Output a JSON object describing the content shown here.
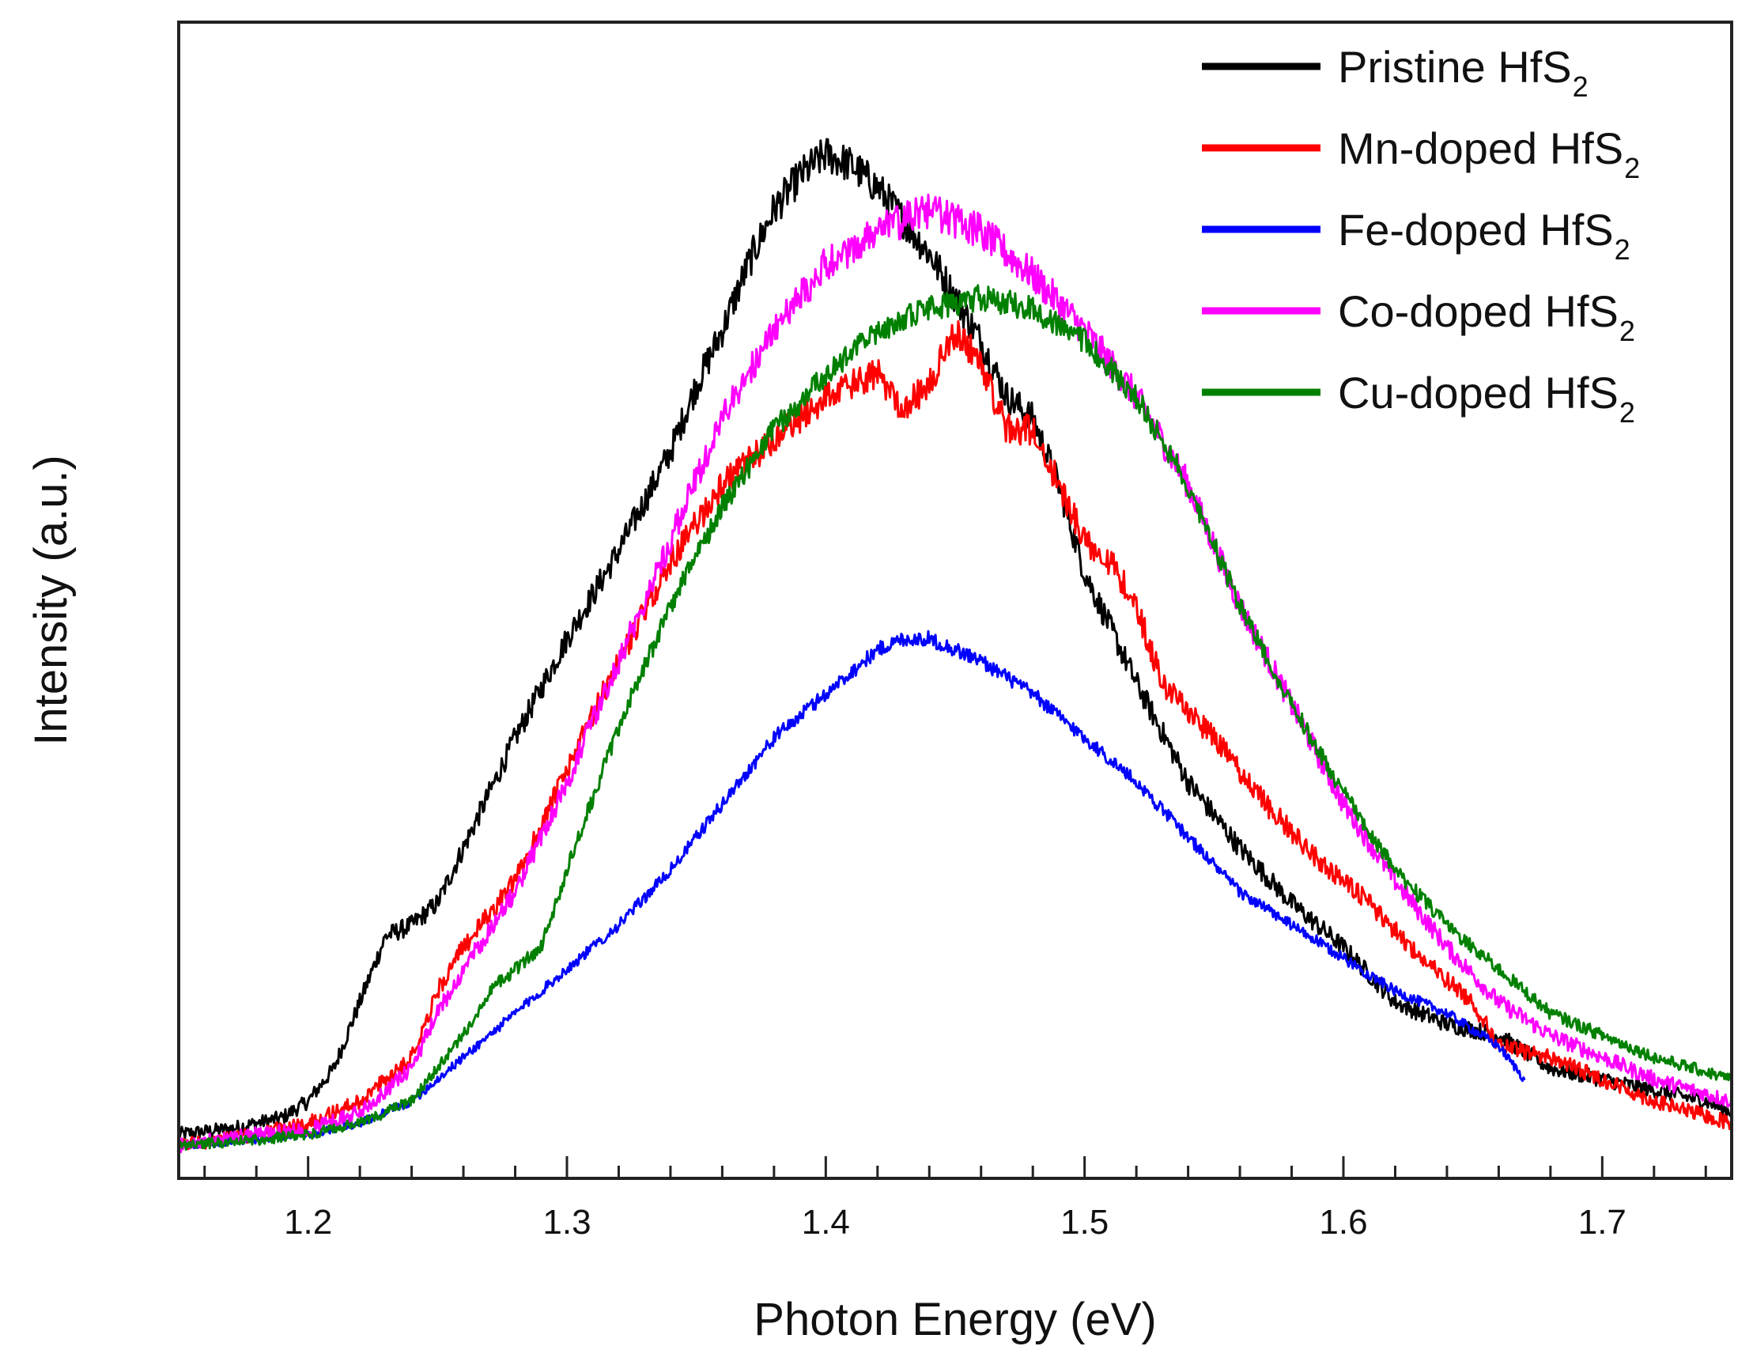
{
  "chart_data": {
    "type": "line",
    "title": "",
    "xlabel": "Photon Energy (eV)",
    "ylabel": "Intensity (a.u.)",
    "xlim": [
      1.15,
      1.75
    ],
    "ylim": [
      0,
      1.05
    ],
    "xticks": [
      1.2,
      1.3,
      1.4,
      1.5,
      1.6,
      1.7
    ],
    "xtick_labels": [
      "1.2",
      "1.3",
      "1.4",
      "1.5",
      "1.6",
      "1.7"
    ],
    "grid": false,
    "legend_position": "top-right",
    "series": [
      {
        "name": "Pristine HfS",
        "subscript": "2",
        "color": "#000000",
        "noise": 0.012,
        "points": [
          [
            1.15,
            0.04
          ],
          [
            1.17,
            0.045
          ],
          [
            1.19,
            0.055
          ],
          [
            1.2,
            0.07
          ],
          [
            1.21,
            0.1
          ],
          [
            1.22,
            0.16
          ],
          [
            1.23,
            0.22
          ],
          [
            1.24,
            0.23
          ],
          [
            1.25,
            0.25
          ],
          [
            1.26,
            0.3
          ],
          [
            1.28,
            0.4
          ],
          [
            1.3,
            0.49
          ],
          [
            1.32,
            0.57
          ],
          [
            1.34,
            0.66
          ],
          [
            1.35,
            0.72
          ],
          [
            1.36,
            0.77
          ],
          [
            1.37,
            0.83
          ],
          [
            1.38,
            0.88
          ],
          [
            1.39,
            0.91
          ],
          [
            1.4,
            0.93
          ],
          [
            1.41,
            0.92
          ],
          [
            1.42,
            0.9
          ],
          [
            1.43,
            0.87
          ],
          [
            1.44,
            0.84
          ],
          [
            1.45,
            0.8
          ],
          [
            1.46,
            0.76
          ],
          [
            1.47,
            0.71
          ],
          [
            1.48,
            0.69
          ],
          [
            1.49,
            0.63
          ],
          [
            1.5,
            0.55
          ],
          [
            1.52,
            0.45
          ],
          [
            1.54,
            0.36
          ],
          [
            1.56,
            0.3
          ],
          [
            1.58,
            0.25
          ],
          [
            1.6,
            0.21
          ],
          [
            1.62,
            0.16
          ],
          [
            1.64,
            0.14
          ],
          [
            1.66,
            0.13
          ],
          [
            1.68,
            0.1
          ],
          [
            1.7,
            0.09
          ],
          [
            1.72,
            0.08
          ],
          [
            1.74,
            0.07
          ],
          [
            1.75,
            0.06
          ]
        ]
      },
      {
        "name": "Mn-doped HfS",
        "subscript": "2",
        "color": "#ff0000",
        "noise": 0.012,
        "points": [
          [
            1.15,
            0.03
          ],
          [
            1.18,
            0.04
          ],
          [
            1.2,
            0.05
          ],
          [
            1.22,
            0.07
          ],
          [
            1.24,
            0.11
          ],
          [
            1.25,
            0.17
          ],
          [
            1.26,
            0.21
          ],
          [
            1.28,
            0.27
          ],
          [
            1.3,
            0.37
          ],
          [
            1.32,
            0.47
          ],
          [
            1.34,
            0.56
          ],
          [
            1.36,
            0.63
          ],
          [
            1.38,
            0.67
          ],
          [
            1.4,
            0.71
          ],
          [
            1.42,
            0.73
          ],
          [
            1.43,
            0.7
          ],
          [
            1.44,
            0.72
          ],
          [
            1.45,
            0.77
          ],
          [
            1.46,
            0.74
          ],
          [
            1.47,
            0.68
          ],
          [
            1.48,
            0.68
          ],
          [
            1.49,
            0.63
          ],
          [
            1.5,
            0.58
          ],
          [
            1.51,
            0.56
          ],
          [
            1.52,
            0.52
          ],
          [
            1.53,
            0.45
          ],
          [
            1.55,
            0.4
          ],
          [
            1.57,
            0.34
          ],
          [
            1.59,
            0.29
          ],
          [
            1.61,
            0.25
          ],
          [
            1.63,
            0.2
          ],
          [
            1.65,
            0.16
          ],
          [
            1.66,
            0.12
          ],
          [
            1.68,
            0.11
          ],
          [
            1.7,
            0.09
          ],
          [
            1.72,
            0.07
          ],
          [
            1.75,
            0.05
          ]
        ]
      },
      {
        "name": "Fe-doped HfS",
        "subscript": "2",
        "color": "#0000ff",
        "noise": 0.007,
        "points": [
          [
            1.15,
            0.03
          ],
          [
            1.18,
            0.035
          ],
          [
            1.2,
            0.04
          ],
          [
            1.22,
            0.05
          ],
          [
            1.24,
            0.07
          ],
          [
            1.26,
            0.11
          ],
          [
            1.27,
            0.13
          ],
          [
            1.28,
            0.15
          ],
          [
            1.3,
            0.19
          ],
          [
            1.32,
            0.23
          ],
          [
            1.34,
            0.28
          ],
          [
            1.36,
            0.34
          ],
          [
            1.38,
            0.4
          ],
          [
            1.4,
            0.44
          ],
          [
            1.42,
            0.48
          ],
          [
            1.43,
            0.49
          ],
          [
            1.44,
            0.49
          ],
          [
            1.45,
            0.48
          ],
          [
            1.46,
            0.47
          ],
          [
            1.48,
            0.44
          ],
          [
            1.5,
            0.4
          ],
          [
            1.52,
            0.36
          ],
          [
            1.54,
            0.31
          ],
          [
            1.56,
            0.26
          ],
          [
            1.58,
            0.23
          ],
          [
            1.6,
            0.2
          ],
          [
            1.62,
            0.17
          ],
          [
            1.64,
            0.15
          ],
          [
            1.66,
            0.12
          ],
          [
            1.67,
            0.09
          ]
        ]
      },
      {
        "name": "Co-doped HfS",
        "subscript": "2",
        "color": "#ff00ff",
        "noise": 0.012,
        "points": [
          [
            1.15,
            0.03
          ],
          [
            1.18,
            0.04
          ],
          [
            1.2,
            0.045
          ],
          [
            1.22,
            0.06
          ],
          [
            1.24,
            0.1
          ],
          [
            1.25,
            0.15
          ],
          [
            1.26,
            0.19
          ],
          [
            1.28,
            0.26
          ],
          [
            1.3,
            0.36
          ],
          [
            1.32,
            0.47
          ],
          [
            1.34,
            0.58
          ],
          [
            1.36,
            0.69
          ],
          [
            1.38,
            0.77
          ],
          [
            1.4,
            0.83
          ],
          [
            1.42,
            0.86
          ],
          [
            1.44,
            0.88
          ],
          [
            1.46,
            0.86
          ],
          [
            1.48,
            0.82
          ],
          [
            1.5,
            0.77
          ],
          [
            1.52,
            0.71
          ],
          [
            1.54,
            0.63
          ],
          [
            1.56,
            0.52
          ],
          [
            1.58,
            0.43
          ],
          [
            1.6,
            0.34
          ],
          [
            1.62,
            0.27
          ],
          [
            1.64,
            0.21
          ],
          [
            1.66,
            0.16
          ],
          [
            1.68,
            0.13
          ],
          [
            1.7,
            0.11
          ],
          [
            1.72,
            0.09
          ],
          [
            1.75,
            0.07
          ]
        ]
      },
      {
        "name": "Cu-doped HfS",
        "subscript": "2",
        "color": "#008000",
        "noise": 0.009,
        "points": [
          [
            1.15,
            0.03
          ],
          [
            1.18,
            0.035
          ],
          [
            1.2,
            0.04
          ],
          [
            1.22,
            0.05
          ],
          [
            1.24,
            0.07
          ],
          [
            1.26,
            0.13
          ],
          [
            1.27,
            0.17
          ],
          [
            1.28,
            0.19
          ],
          [
            1.29,
            0.21
          ],
          [
            1.3,
            0.28
          ],
          [
            1.32,
            0.41
          ],
          [
            1.34,
            0.52
          ],
          [
            1.36,
            0.61
          ],
          [
            1.38,
            0.68
          ],
          [
            1.4,
            0.73
          ],
          [
            1.42,
            0.77
          ],
          [
            1.44,
            0.79
          ],
          [
            1.46,
            0.8
          ],
          [
            1.48,
            0.79
          ],
          [
            1.5,
            0.76
          ],
          [
            1.52,
            0.71
          ],
          [
            1.54,
            0.63
          ],
          [
            1.56,
            0.52
          ],
          [
            1.58,
            0.43
          ],
          [
            1.6,
            0.35
          ],
          [
            1.62,
            0.28
          ],
          [
            1.64,
            0.23
          ],
          [
            1.66,
            0.19
          ],
          [
            1.68,
            0.15
          ],
          [
            1.7,
            0.13
          ],
          [
            1.72,
            0.11
          ],
          [
            1.75,
            0.09
          ]
        ]
      }
    ]
  }
}
